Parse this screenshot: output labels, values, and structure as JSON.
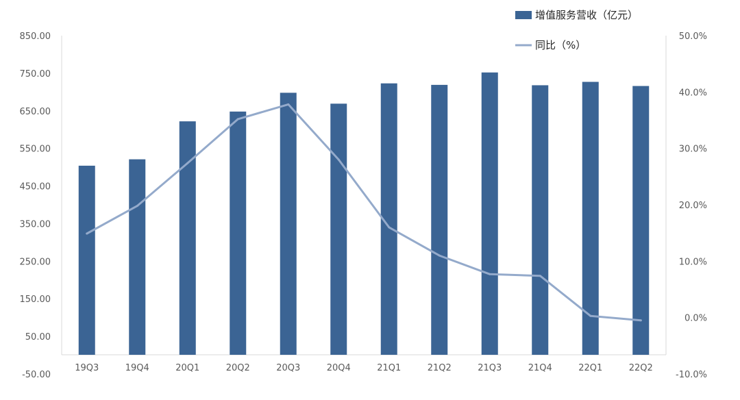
{
  "chart_data": {
    "type": "bar",
    "categories": [
      "19Q3",
      "19Q4",
      "20Q1",
      "20Q2",
      "20Q3",
      "20Q4",
      "21Q1",
      "21Q2",
      "21Q3",
      "21Q4",
      "22Q1",
      "22Q2"
    ],
    "series": [
      {
        "name": "增值服务营收（亿元）",
        "type": "bar",
        "axis": "left",
        "color": "#3b6494",
        "values": [
          504,
          521,
          622,
          648,
          698,
          669,
          723,
          719,
          752,
          718,
          727,
          716
        ]
      },
      {
        "name": "同比（%）",
        "type": "line",
        "axis": "right",
        "color": "#94aacb",
        "values": [
          14.9,
          19.8,
          27.4,
          35.2,
          37.8,
          28.0,
          16.0,
          11.0,
          7.7,
          7.4,
          0.3,
          -0.5
        ]
      }
    ],
    "y_left": {
      "ylim": [
        -50,
        850
      ],
      "ticks": [
        "-50.00",
        "50.00",
        "150.00",
        "250.00",
        "350.00",
        "450.00",
        "550.00",
        "650.00",
        "750.00",
        "850.00"
      ]
    },
    "y_right": {
      "ylim": [
        -10,
        50
      ],
      "ticks": [
        "-10.0%",
        "0.0%",
        "10.0%",
        "20.0%",
        "30.0%",
        "40.0%",
        "50.0%"
      ]
    },
    "grid": false,
    "legend_position": "top-right"
  }
}
